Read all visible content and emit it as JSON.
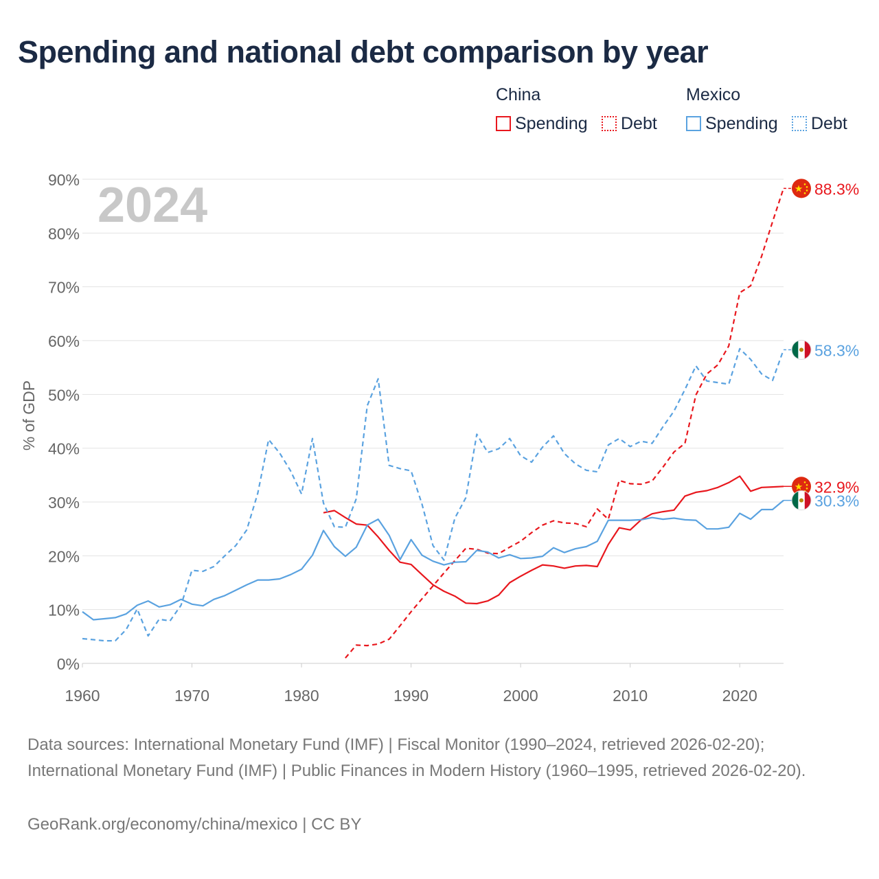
{
  "title": "Spending and national debt comparison by year",
  "year_watermark": "2024",
  "legend": {
    "china_label": "China",
    "mexico_label": "Mexico",
    "items": [
      {
        "label": "Spending",
        "style": "solid",
        "color": "#e8171d"
      },
      {
        "label": "Debt",
        "style": "dotted",
        "color": "#e8171d"
      },
      {
        "label": "Spending",
        "style": "solid",
        "color": "#5aa2e0"
      },
      {
        "label": "Debt",
        "style": "dotted",
        "color": "#5aa2e0"
      }
    ]
  },
  "colors": {
    "china": "#e8171d",
    "mexico": "#5aa2e0",
    "grid": "#e2e2e2",
    "axis_text": "#666666",
    "title": "#1b2a44"
  },
  "icons": {
    "china": "china-flag-icon",
    "mexico": "mexico-flag-icon"
  },
  "chart_data": {
    "type": "line",
    "ylabel": "% of GDP",
    "xlabel": "",
    "xlim": [
      1960,
      2024
    ],
    "ylim": [
      0,
      90
    ],
    "yticks": [
      0,
      10,
      20,
      30,
      40,
      50,
      60,
      70,
      80,
      90
    ],
    "ytick_labels": [
      "0%",
      "10%",
      "20%",
      "30%",
      "40%",
      "50%",
      "60%",
      "70%",
      "80%",
      "90%"
    ],
    "xticks": [
      1960,
      1970,
      1980,
      1990,
      2000,
      2010,
      2020
    ],
    "xtick_labels": [
      "1960",
      "1970",
      "1980",
      "1990",
      "2000",
      "2010",
      "2020"
    ],
    "series": [
      {
        "name": "China Spending",
        "country": "china",
        "style": "solid",
        "end_label": "32.9%",
        "x": [
          1982,
          1983,
          1984,
          1985,
          1986,
          1987,
          1988,
          1989,
          1990,
          1991,
          1992,
          1993,
          1994,
          1995,
          1996,
          1997,
          1998,
          1999,
          2000,
          2001,
          2002,
          2003,
          2004,
          2005,
          2006,
          2007,
          2008,
          2009,
          2010,
          2011,
          2012,
          2013,
          2014,
          2015,
          2016,
          2017,
          2018,
          2019,
          2020,
          2021,
          2022,
          2023,
          2024
        ],
        "values": [
          28.0,
          28.4,
          27.1,
          25.9,
          25.7,
          23.5,
          21.0,
          18.8,
          18.4,
          16.5,
          14.6,
          13.4,
          12.5,
          11.2,
          11.1,
          11.6,
          12.7,
          15.0,
          16.2,
          17.3,
          18.3,
          18.1,
          17.7,
          18.1,
          18.2,
          18.0,
          22.1,
          25.2,
          24.8,
          26.7,
          27.8,
          28.2,
          28.5,
          31.1,
          31.8,
          32.1,
          32.7,
          33.6,
          34.8,
          32.0,
          32.7,
          32.8,
          32.9
        ]
      },
      {
        "name": "China Debt",
        "country": "china",
        "style": "dashed",
        "end_label": "88.3%",
        "x": [
          1984,
          1985,
          1986,
          1987,
          1988,
          1989,
          1990,
          1991,
          1992,
          1993,
          1994,
          1995,
          1996,
          1997,
          1998,
          1999,
          2000,
          2001,
          2002,
          2003,
          2004,
          2005,
          2006,
          2007,
          2008,
          2009,
          2010,
          2011,
          2012,
          2013,
          2014,
          2015,
          2016,
          2017,
          2018,
          2019,
          2020,
          2021,
          2022,
          2023,
          2024
        ],
        "values": [
          1.0,
          3.4,
          3.3,
          3.6,
          4.5,
          7.0,
          9.6,
          12.0,
          14.4,
          16.8,
          19.1,
          21.4,
          21.2,
          20.5,
          20.4,
          21.6,
          22.7,
          24.3,
          25.7,
          26.5,
          26.1,
          26.0,
          25.4,
          28.7,
          26.8,
          34.0,
          33.4,
          33.3,
          33.9,
          36.5,
          39.3,
          40.9,
          49.9,
          53.8,
          55.5,
          59.0,
          68.9,
          70.2,
          75.7,
          82.1,
          88.3
        ]
      },
      {
        "name": "Mexico Spending",
        "country": "mexico",
        "style": "solid",
        "end_label": "30.3%",
        "x": [
          1960,
          1961,
          1962,
          1963,
          1964,
          1965,
          1966,
          1967,
          1968,
          1969,
          1970,
          1971,
          1972,
          1973,
          1974,
          1975,
          1976,
          1977,
          1978,
          1979,
          1980,
          1981,
          1982,
          1983,
          1984,
          1985,
          1986,
          1987,
          1988,
          1989,
          1990,
          1991,
          1992,
          1993,
          1994,
          1995,
          1996,
          1997,
          1998,
          1999,
          2000,
          2001,
          2002,
          2003,
          2004,
          2005,
          2006,
          2007,
          2008,
          2009,
          2010,
          2011,
          2012,
          2013,
          2014,
          2015,
          2016,
          2017,
          2018,
          2019,
          2020,
          2021,
          2022,
          2023,
          2024
        ],
        "values": [
          9.6,
          8.1,
          8.3,
          8.5,
          9.2,
          10.8,
          11.6,
          10.5,
          10.9,
          11.9,
          11.0,
          10.7,
          11.9,
          12.6,
          13.6,
          14.6,
          15.5,
          15.5,
          15.7,
          16.5,
          17.5,
          20.1,
          24.7,
          21.7,
          19.9,
          21.6,
          25.7,
          26.8,
          23.8,
          19.3,
          23.0,
          20.1,
          19.0,
          18.3,
          18.8,
          18.9,
          21.0,
          20.7,
          19.6,
          20.2,
          19.5,
          19.6,
          19.9,
          21.5,
          20.6,
          21.3,
          21.7,
          22.7,
          26.6,
          26.6,
          26.6,
          26.7,
          27.1,
          26.8,
          27.0,
          26.7,
          26.6,
          25.0,
          25.0,
          25.3,
          27.9,
          26.8,
          28.6,
          28.6,
          30.3
        ]
      },
      {
        "name": "Mexico Debt",
        "country": "mexico",
        "style": "dashed",
        "end_label": "58.3%",
        "x": [
          1960,
          1961,
          1962,
          1963,
          1964,
          1965,
          1966,
          1967,
          1968,
          1969,
          1970,
          1971,
          1972,
          1973,
          1974,
          1975,
          1976,
          1977,
          1978,
          1979,
          1980,
          1981,
          1982,
          1983,
          1984,
          1985,
          1986,
          1987,
          1988,
          1989,
          1990,
          1991,
          1992,
          1993,
          1994,
          1995,
          1996,
          1997,
          1998,
          1999,
          2000,
          2001,
          2002,
          2003,
          2004,
          2005,
          2006,
          2007,
          2008,
          2009,
          2010,
          2011,
          2012,
          2013,
          2014,
          2015,
          2016,
          2017,
          2018,
          2019,
          2020,
          2021,
          2022,
          2023,
          2024
        ],
        "values": [
          4.6,
          4.4,
          4.2,
          4.2,
          6.3,
          10.1,
          5.1,
          8.2,
          7.9,
          10.8,
          17.3,
          17.1,
          18.0,
          20.0,
          21.9,
          24.8,
          31.6,
          41.6,
          39.1,
          35.8,
          31.5,
          41.8,
          29.8,
          25.4,
          25.3,
          30.6,
          47.9,
          52.9,
          36.8,
          36.2,
          35.8,
          29.6,
          21.9,
          19.2,
          27.0,
          30.8,
          42.6,
          39.2,
          39.9,
          41.8,
          38.6,
          37.4,
          40.2,
          42.3,
          39.0,
          37.1,
          35.9,
          35.6,
          40.6,
          41.8,
          40.3,
          41.3,
          40.9,
          44.0,
          46.9,
          50.9,
          55.3,
          52.5,
          52.2,
          51.9,
          58.5,
          56.5,
          53.8,
          52.6,
          58.3
        ]
      }
    ]
  },
  "footer": {
    "sources": "Data sources: International Monetary Fund (IMF) | Fiscal Monitor (1990–2024, retrieved 2026-02-20); International Monetary Fund (IMF) | Public Finances in Modern History (1960–1995, retrieved 2026-02-20).",
    "credit": "GeoRank.org/economy/china/mexico | CC BY"
  }
}
